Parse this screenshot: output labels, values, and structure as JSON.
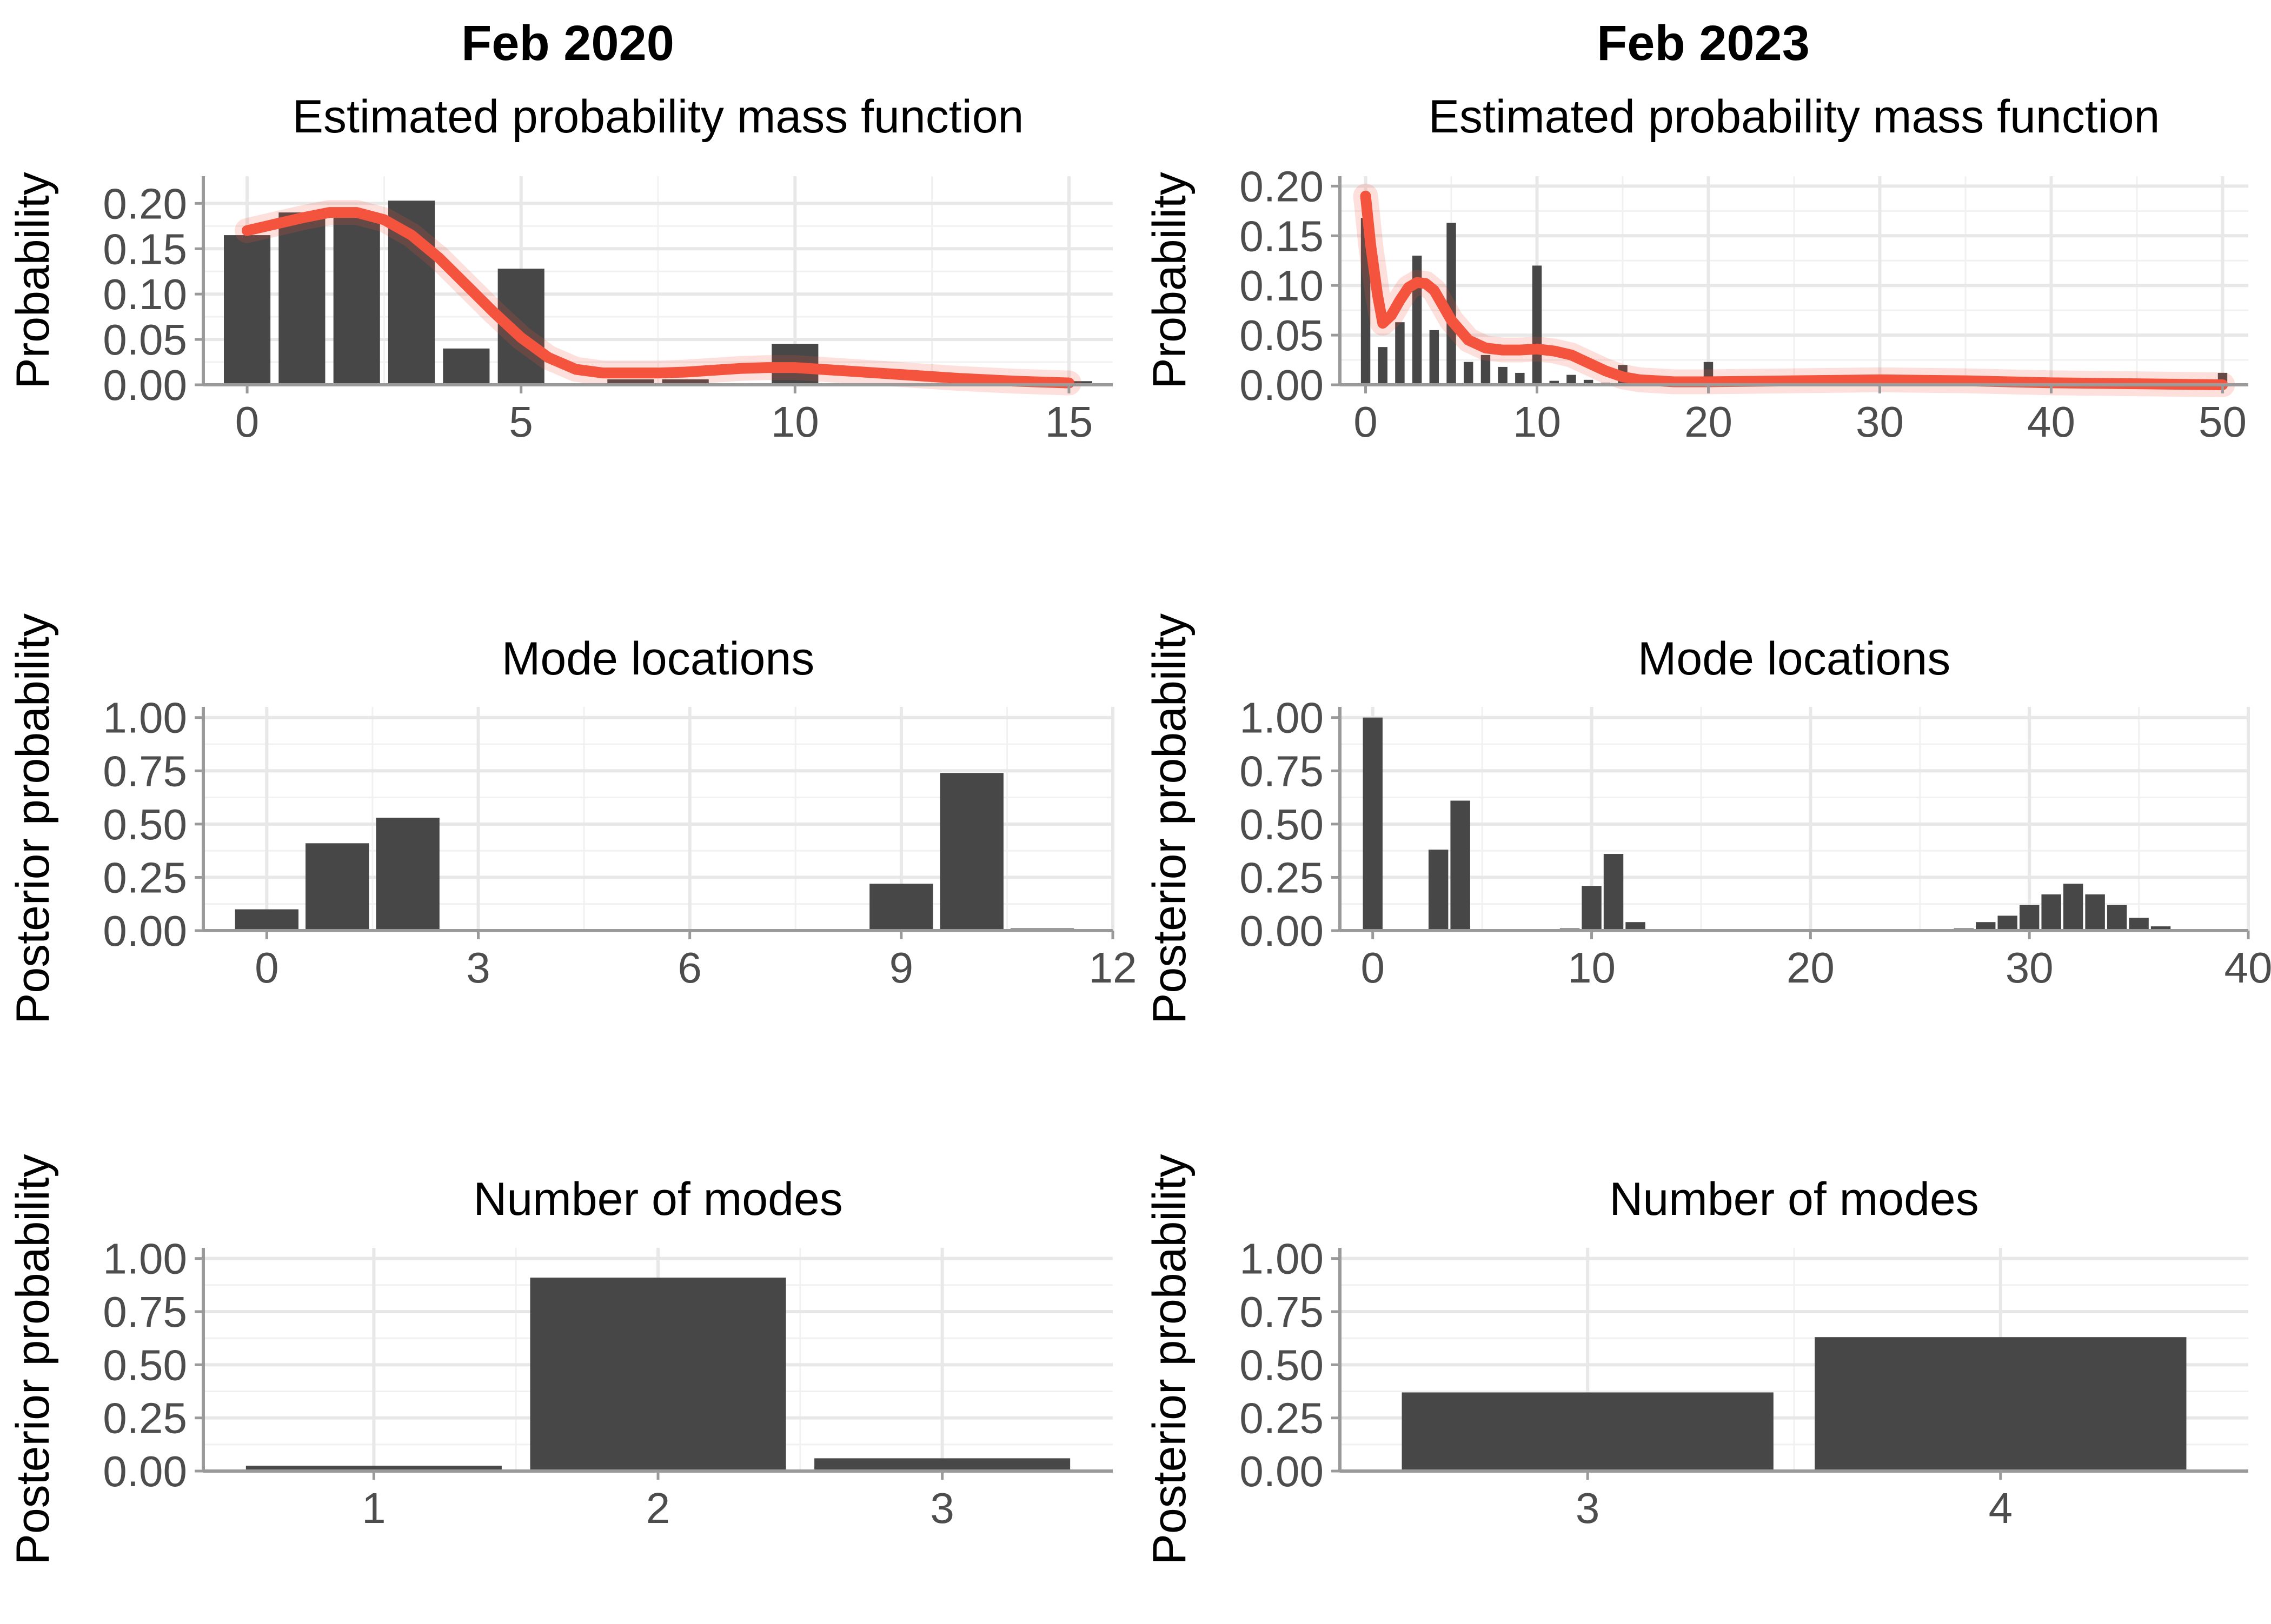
{
  "columns": [
    "Feb 2020",
    "Feb 2023"
  ],
  "colors": {
    "bar": "#474747",
    "curve": "#f4533d",
    "grid_major": "#e8e8e8",
    "grid_minor": "#f1f1f1",
    "axis": "#9a9a9a",
    "tick_text": "#4d4d4d"
  },
  "chart_data": [
    {
      "id": "pmf-2020",
      "column": "Feb 2020",
      "type": "bar",
      "title": "Estimated probability mass function",
      "xlabel": "",
      "ylabel": "Probability",
      "xlim": [
        -0.8,
        15.8
      ],
      "ylim": [
        0,
        0.23
      ],
      "xticks": [
        0,
        5,
        10,
        15
      ],
      "yticks": [
        0,
        0.05,
        0.1,
        0.15,
        0.2
      ],
      "ytick_labels": [
        "0.00",
        "0.05",
        "0.10",
        "0.15",
        "0.20"
      ],
      "bar_width": 0.85,
      "x": [
        0,
        1,
        2,
        3,
        4,
        5,
        6,
        7,
        8,
        9,
        10,
        11,
        12,
        13,
        14,
        15
      ],
      "values": [
        0.165,
        0.19,
        0.185,
        0.203,
        0.04,
        0.128,
        0.0,
        0.006,
        0.006,
        0.0,
        0.045,
        0.0,
        0.0,
        0.0,
        0.0,
        0.004
      ],
      "curve": {
        "name": "",
        "x": [
          0,
          0.5,
          1,
          1.5,
          2,
          2.5,
          3,
          3.5,
          4,
          4.5,
          5,
          5.5,
          6,
          6.5,
          7,
          7.5,
          8,
          8.5,
          9,
          9.5,
          10,
          10.5,
          11,
          12,
          13,
          14,
          15
        ],
        "y": [
          0.17,
          0.177,
          0.184,
          0.19,
          0.19,
          0.182,
          0.165,
          0.14,
          0.11,
          0.08,
          0.052,
          0.03,
          0.017,
          0.013,
          0.013,
          0.013,
          0.014,
          0.016,
          0.018,
          0.019,
          0.019,
          0.017,
          0.015,
          0.011,
          0.007,
          0.004,
          0.002
        ]
      }
    },
    {
      "id": "pmf-2023",
      "column": "Feb 2023",
      "type": "bar",
      "title": "Estimated probability mass function",
      "xlabel": "",
      "ylabel": "Probability",
      "xlim": [
        -1.5,
        51.5
      ],
      "ylim": [
        0,
        0.21
      ],
      "xticks": [
        0,
        10,
        20,
        30,
        40,
        50
      ],
      "yticks": [
        0,
        0.05,
        0.1,
        0.15,
        0.2
      ],
      "ytick_labels": [
        "0.00",
        "0.05",
        "0.10",
        "0.15",
        "0.20"
      ],
      "bar_width": 0.55,
      "x": [
        0,
        1,
        2,
        3,
        4,
        5,
        6,
        7,
        8,
        9,
        10,
        11,
        12,
        13,
        14,
        15,
        20,
        25,
        50
      ],
      "values": [
        0.168,
        0.038,
        0.063,
        0.13,
        0.055,
        0.163,
        0.023,
        0.03,
        0.018,
        0.012,
        0.12,
        0.004,
        0.01,
        0.005,
        0.002,
        0.02,
        0.023,
        0.007,
        0.012
      ],
      "curve": {
        "name": "",
        "x": [
          0,
          0.3,
          0.7,
          1,
          1.5,
          2,
          2.5,
          3,
          3.5,
          4,
          4.5,
          5,
          6,
          7,
          8,
          9,
          10,
          11,
          12,
          13,
          14,
          15,
          16,
          18,
          20,
          25,
          30,
          35,
          40,
          45,
          50
        ],
        "y": [
          0.19,
          0.14,
          0.09,
          0.062,
          0.07,
          0.085,
          0.098,
          0.103,
          0.102,
          0.095,
          0.08,
          0.065,
          0.045,
          0.037,
          0.035,
          0.035,
          0.036,
          0.034,
          0.03,
          0.022,
          0.014,
          0.008,
          0.005,
          0.003,
          0.003,
          0.004,
          0.005,
          0.004,
          0.002,
          0.001,
          0.0
        ]
      }
    },
    {
      "id": "modes-2020",
      "column": "Feb 2020",
      "type": "bar",
      "title": "Mode locations",
      "xlabel": "",
      "ylabel": "Posterior probability",
      "xlim": [
        -0.9,
        12
      ],
      "ylim": [
        0,
        1.05
      ],
      "xticks": [
        0,
        3,
        6,
        9,
        12
      ],
      "yticks": [
        0,
        0.25,
        0.5,
        0.75,
        1.0
      ],
      "ytick_labels": [
        "0.00",
        "0.25",
        "0.50",
        "0.75",
        "1.00"
      ],
      "bar_width": 0.9,
      "x": [
        0,
        1,
        2,
        9,
        10,
        11
      ],
      "values": [
        0.1,
        0.41,
        0.53,
        0.22,
        0.74,
        0.01
      ]
    },
    {
      "id": "modes-2023",
      "column": "Feb 2023",
      "type": "bar",
      "title": "Mode locations",
      "xlabel": "",
      "ylabel": "Posterior probability",
      "xlim": [
        -1.5,
        40
      ],
      "ylim": [
        0,
        1.05
      ],
      "xticks": [
        0,
        10,
        20,
        30,
        40
      ],
      "yticks": [
        0,
        0.25,
        0.5,
        0.75,
        1.0
      ],
      "ytick_labels": [
        "0.00",
        "0.25",
        "0.50",
        "0.75",
        "1.00"
      ],
      "bar_width": 0.9,
      "x": [
        0,
        3,
        4,
        9,
        10,
        11,
        12,
        27,
        28,
        29,
        30,
        31,
        32,
        33,
        34,
        35,
        36,
        37,
        38
      ],
      "values": [
        1.0,
        0.38,
        0.61,
        0.01,
        0.21,
        0.36,
        0.04,
        0.01,
        0.04,
        0.07,
        0.12,
        0.17,
        0.22,
        0.17,
        0.12,
        0.06,
        0.02,
        0.005,
        0.003
      ]
    },
    {
      "id": "nmodes-2020",
      "column": "Feb 2020",
      "type": "bar",
      "title": "Number of modes",
      "xlabel": "",
      "ylabel": "Posterior probability",
      "xlim": [
        0.4,
        3.6
      ],
      "ylim": [
        0,
        1.05
      ],
      "xticks": [
        1,
        2,
        3
      ],
      "yticks": [
        0,
        0.25,
        0.5,
        0.75,
        1.0
      ],
      "ytick_labels": [
        "0.00",
        "0.25",
        "0.50",
        "0.75",
        "1.00"
      ],
      "bar_width": 0.9,
      "x": [
        1,
        2,
        3
      ],
      "values": [
        0.025,
        0.91,
        0.06
      ]
    },
    {
      "id": "nmodes-2023",
      "column": "Feb 2023",
      "type": "bar",
      "title": "Number of modes",
      "xlabel": "",
      "ylabel": "Posterior probability",
      "xlim": [
        2.4,
        4.6
      ],
      "ylim": [
        0,
        1.05
      ],
      "xticks": [
        3,
        4
      ],
      "yticks": [
        0,
        0.25,
        0.5,
        0.75,
        1.0
      ],
      "ytick_labels": [
        "0.00",
        "0.25",
        "0.50",
        "0.75",
        "1.00"
      ],
      "bar_width": 0.9,
      "x": [
        3,
        4
      ],
      "values": [
        0.37,
        0.63
      ]
    }
  ]
}
